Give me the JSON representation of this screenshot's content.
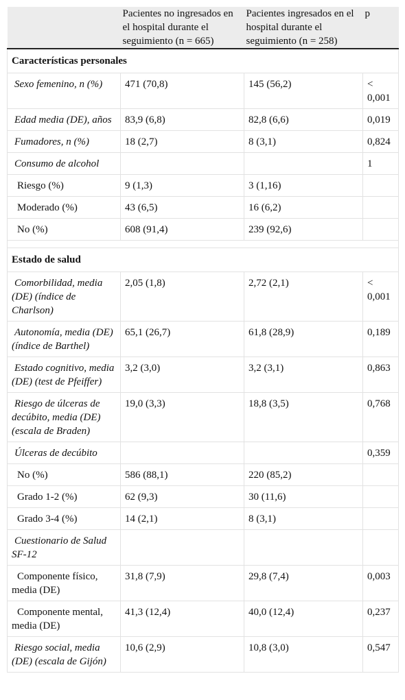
{
  "table": {
    "columns": [
      "Pacientes no ingresados en el hospital durante el seguimiento (n = 665)",
      "Pacientes ingresados en el hospital durante el seguimiento (n = 258)",
      "p"
    ],
    "sections": [
      {
        "title": "Características personales",
        "rows": [
          {
            "label": "Sexo femenino, n (%)",
            "values": [
              "471 (70,8)",
              "145 (56,2)",
              "< 0,001"
            ]
          },
          {
            "label": "Edad media (DE), años",
            "values": [
              "83,9 (6,8)",
              "82,8 (6,6)",
              "0,019"
            ]
          },
          {
            "label": "Fumadores, n (%)",
            "values": [
              "18 (2,7)",
              "8 (3,1)",
              "0,824"
            ]
          },
          {
            "label": "Consumo de alcohol",
            "values": [
              null,
              null,
              "1"
            ],
            "items": [
              {
                "label": "Riesgo (%)",
                "values": [
                  "9 (1,3)",
                  "3 (1,16)",
                  null
                ]
              },
              {
                "label": "Moderado (%)",
                "values": [
                  "43 (6,5)",
                  "16 (6,2)",
                  null
                ]
              },
              {
                "label": "No (%)",
                "values": [
                  "608 (91,4)",
                  "239 (92,6)",
                  null
                ]
              }
            ]
          }
        ]
      },
      {
        "title": "Estado de salud",
        "rows": [
          {
            "label": "Comorbilidad, media (DE) (índice de Charlson)",
            "values": [
              "2,05 (1,8)",
              "2,72 (2,1)",
              "< 0,001"
            ]
          },
          {
            "label": "Autonomía, media (DE) (índice de Barthel)",
            "values": [
              "65,1 (26,7)",
              "61,8 (28,9)",
              "0,189"
            ]
          },
          {
            "label": "Estado cognitivo, media (DE) (test de Pfeiffer)",
            "values": [
              "3,2 (3,0)",
              "3,2 (3,1)",
              "0,863"
            ]
          },
          {
            "label": "Riesgo de úlceras de decúbito, media (DE) (escala de Braden)",
            "values": [
              "19,0 (3,3)",
              "18,8 (3,5)",
              "0,768"
            ]
          },
          {
            "label": "Úlceras de decúbito",
            "values": [
              null,
              null,
              "0,359"
            ],
            "items": [
              {
                "label": "No (%)",
                "values": [
                  "586 (88,1)",
                  "220 (85,2)",
                  null
                ]
              },
              {
                "label": "Grado 1-2 (%)",
                "values": [
                  "62 (9,3)",
                  "30 (11,6)",
                  null
                ]
              },
              {
                "label": "Grado 3-4 (%)",
                "values": [
                  "14 (2,1)",
                  "8 (3,1)",
                  null
                ]
              }
            ]
          },
          {
            "label": "Cuestionario de Salud SF-12",
            "values": [
              null,
              null,
              null
            ],
            "items": [
              {
                "label": "Componente físico, media (DE)",
                "values": [
                  "31,8 (7,9)",
                  "29,8 (7,4)",
                  "0,003"
                ]
              },
              {
                "label": "Componente mental, media (DE)",
                "values": [
                  "41,3 (12,4)",
                  "40,0 (12,4)",
                  "0,237"
                ]
              }
            ]
          },
          {
            "label": "Riesgo social, media (DE) (escala de Gijón)",
            "values": [
              "10,6 (2,9)",
              "10,8 (3,0)",
              "0,547"
            ]
          }
        ]
      }
    ]
  }
}
